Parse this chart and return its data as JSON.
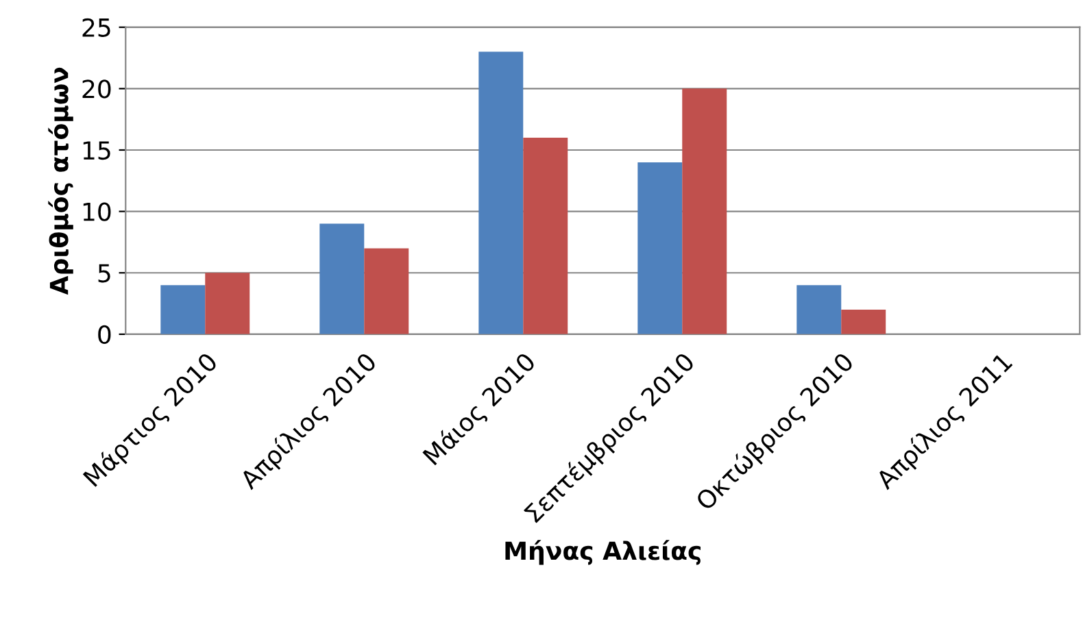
{
  "chart_data": {
    "type": "bar",
    "xlabel": "Μήνας Αλιείας",
    "ylabel": "Αριθμός ατόμων",
    "categories": [
      "Μάρτιος 2010",
      "Απρίλιος 2010",
      "Μάιος 2010",
      "Σεπτέμβριος 2010",
      "Οκτώβριος 2010",
      "Απρίλιος 2011"
    ],
    "series": [
      {
        "color": "#4f81bd",
        "values": [
          4,
          9,
          23,
          14,
          4,
          0
        ]
      },
      {
        "color": "#c0504d",
        "values": [
          5,
          7,
          16,
          20,
          2,
          0
        ]
      }
    ],
    "ylim": [
      0,
      25
    ],
    "yticks": [
      0,
      5,
      10,
      15,
      20,
      25
    ],
    "grid": "y",
    "legend": false
  }
}
